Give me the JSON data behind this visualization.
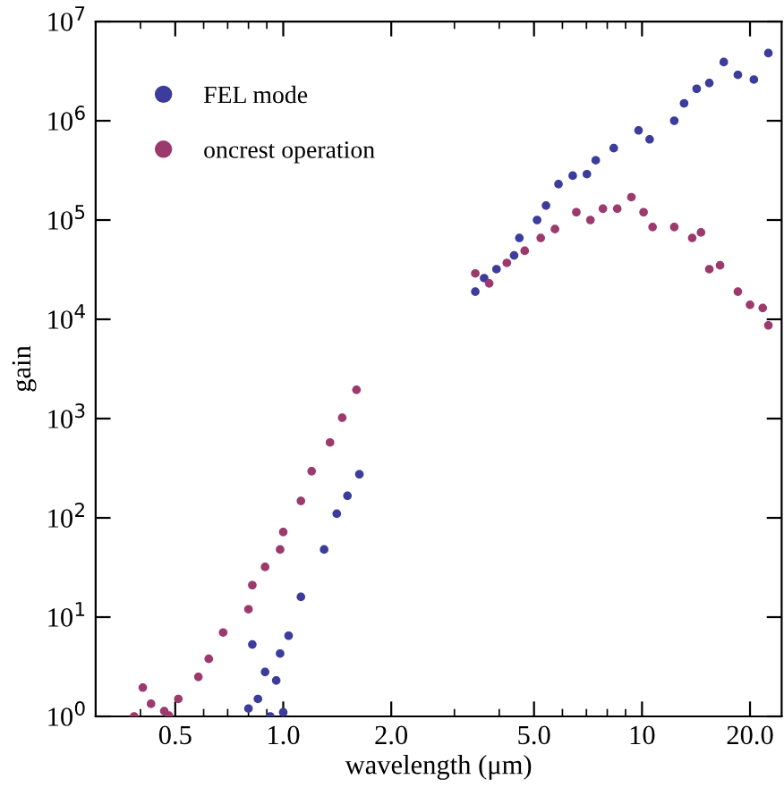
{
  "chart_data": {
    "type": "scatter",
    "xlabel": "wavelength (μm)",
    "ylabel": "gain",
    "log": "xy",
    "xlim": [
      0.3,
      24.5
    ],
    "ylim": [
      1,
      10000000
    ],
    "xticks": [
      0.5,
      {
        "value": 1,
        "label": "1.0"
      },
      {
        "value": 2,
        "label": "2.0"
      },
      {
        "value": 5,
        "label": "5.0"
      },
      10,
      {
        "value": 20,
        "label": "20.0"
      }
    ],
    "yticks": [
      {
        "value": 1,
        "label": "10$^{0}$"
      },
      {
        "value": 10,
        "label": "10$^{1}$"
      },
      {
        "value": 100,
        "label": "10$^{2}$"
      },
      {
        "value": 1000,
        "label": "10$^{3}$"
      },
      {
        "value": 10000,
        "label": "10$^{4}$"
      },
      {
        "value": 100000,
        "label": "10$^{5}$"
      },
      {
        "value": 1000000,
        "label": "10$^{6}$"
      },
      {
        "value": 10000000,
        "label": "10$^{7}$"
      }
    ],
    "grid": false,
    "legend": "top left",
    "marker": "circle",
    "series": [
      {
        "name": "FEL mode",
        "color": "#3c3c9c",
        "x": [
          0.8,
          0.82,
          0.85,
          0.89,
          0.92,
          0.956,
          0.98,
          1.0,
          1.035,
          1.12,
          1.3,
          1.41,
          1.51,
          1.63,
          3.43,
          3.63,
          3.93,
          4.4,
          4.55,
          5.1,
          5.4,
          5.85,
          6.41,
          7.02,
          7.43,
          8.34,
          9.78,
          10.5,
          12.3,
          13.1,
          14.2,
          15.4,
          16.9,
          18.5,
          20.5,
          22.5
        ],
        "values": [
          1.2,
          5.3,
          1.5,
          2.8,
          1.0,
          2.3,
          4.3,
          1.1,
          6.5,
          16,
          48,
          110,
          167,
          275,
          19000,
          26000,
          32000,
          44000,
          66000,
          100000,
          140000,
          230000,
          280000,
          290000,
          400000,
          530000,
          800000,
          650000,
          1000000,
          1500000,
          2100000,
          2400000,
          3900000,
          2900000,
          2600000,
          4800000
        ]
      },
      {
        "name": "oncrest operation",
        "color": "#9c3a6e",
        "x": [
          0.384,
          0.406,
          0.428,
          0.466,
          0.48,
          0.51,
          0.58,
          0.62,
          0.68,
          0.8,
          0.82,
          0.89,
          0.98,
          1.0,
          1.12,
          1.2,
          1.35,
          1.46,
          1.6,
          3.43,
          3.75,
          4.2,
          4.71,
          5.22,
          5.72,
          6.56,
          7.18,
          7.78,
          8.53,
          9.34,
          10.1,
          10.7,
          12.3,
          13.8,
          14.6,
          15.4,
          16.5,
          18.5,
          20.0,
          21.7,
          22.5
        ],
        "values": [
          1.0,
          1.95,
          1.34,
          1.13,
          1.02,
          1.5,
          2.5,
          3.8,
          7,
          12,
          21,
          32,
          48,
          72,
          148,
          295,
          575,
          1020,
          1950,
          29000,
          23000,
          37000,
          49000,
          66000,
          81000,
          120000,
          100000,
          130000,
          130000,
          170000,
          120000,
          85000,
          85000,
          66000,
          75000,
          32000,
          35000,
          19000,
          14000,
          13000,
          8700
        ]
      }
    ]
  }
}
